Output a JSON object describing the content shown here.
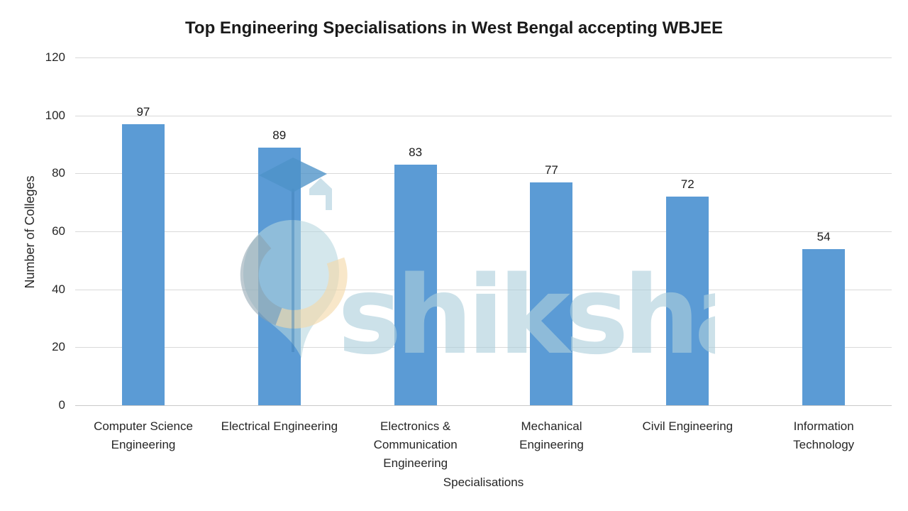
{
  "chart_data": {
    "type": "bar",
    "title": "Top Engineering Specialisations in West Bengal accepting WBJEE",
    "xlabel": "Specialisations",
    "ylabel": "Number of Colleges",
    "categories": [
      "Computer Science\nEngineering",
      "Electrical Engineering",
      "Electronics &\nCommunication\nEngineering",
      "Mechanical\nEngineering",
      "Civil Engineering",
      "Information\nTechnology"
    ],
    "values": [
      97,
      89,
      83,
      77,
      72,
      54
    ],
    "ylim": [
      0,
      120
    ],
    "yticks": [
      0,
      20,
      40,
      60,
      80,
      100,
      120
    ],
    "grid": true,
    "legend": false,
    "bar_color": "#5B9BD5",
    "gridline_color": "#D9D9D9",
    "value_labels_shown": true
  },
  "watermark": {
    "text": "shiksha",
    "text_color": "#AED0DC",
    "pin_color": "#B5D6DE",
    "cap_color": "#4D92C8",
    "arc_left_color": "#8AA0AD",
    "arc_right_color": "#F3D9A8"
  }
}
